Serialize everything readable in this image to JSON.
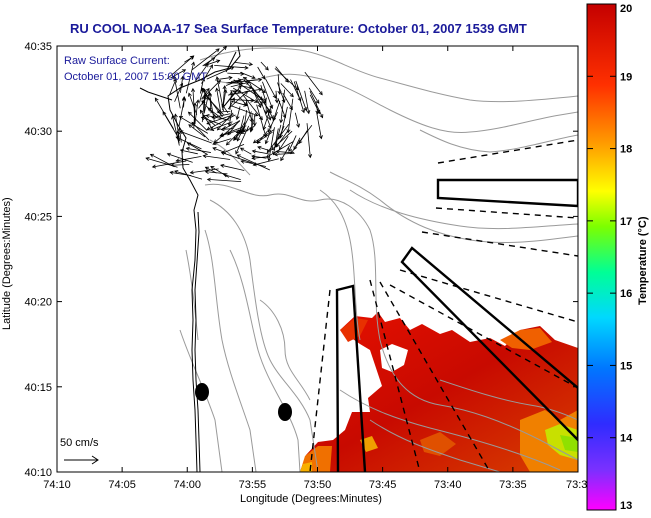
{
  "title": "RU COOL  NOAA-17  Sea Surface Temperature:  October 01, 2007 1539 GMT",
  "annotation": {
    "line1": "Raw Surface Current:",
    "line2": "October 01, 2007 15:00 GMT"
  },
  "scale_label": "50 cm/s",
  "x_axis": {
    "label": "Longitude (Degrees:Minutes)",
    "ticks": [
      "74:10",
      "74:05",
      "74:00",
      "73:55",
      "73:50",
      "73:45",
      "73:40",
      "73:35",
      "73:3"
    ]
  },
  "y_axis": {
    "label": "Latitude (Degrees:Minutes)",
    "ticks": [
      "40:35",
      "40:30",
      "40:25",
      "40:20",
      "40:15",
      "40:10"
    ]
  },
  "colorbar": {
    "label": "Temperature (°C)",
    "ticks": [
      "20",
      "19",
      "18",
      "17",
      "16",
      "15",
      "14",
      "13"
    ],
    "range": [
      13,
      20
    ],
    "colors": [
      "#ff00ff",
      "#3b2cff",
      "#0077ff",
      "#00d8ff",
      "#00ff96",
      "#7cff00",
      "#ffff00",
      "#ffa000",
      "#ff3000",
      "#c40000"
    ]
  },
  "chart_data": {
    "type": "heatmap",
    "title": "RU COOL  NOAA-17  Sea Surface Temperature:  October 01, 2007 1539 GMT",
    "xlabel": "Longitude (Degrees:Minutes)",
    "ylabel": "Latitude (Degrees:Minutes)",
    "xlim": [
      "74:10",
      "73:3"
    ],
    "ylim": [
      "40:10",
      "40:35"
    ],
    "zlabel": "Temperature (°C)",
    "zlim": [
      13,
      20
    ]
  }
}
